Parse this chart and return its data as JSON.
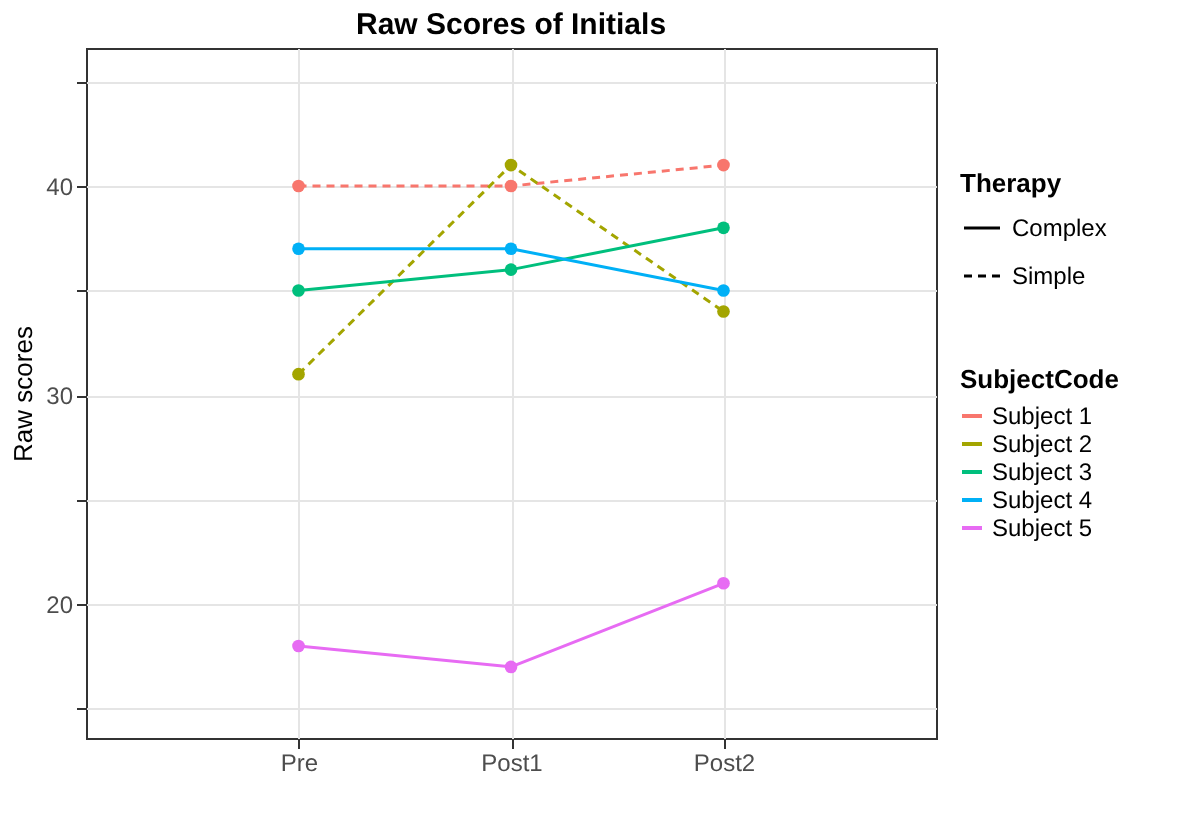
{
  "chart_data": {
    "type": "line",
    "title": "Raw Scores of Initials",
    "ylabel": "Raw scores",
    "categories": [
      "Pre",
      "Post1",
      "Post2"
    ],
    "legend_title": [
      "Therapy",
      "SubjectCode"
    ],
    "annotations": [
      "Complex",
      "Simple"
    ],
    "legend": "right",
    "grid": true,
    "marker": "circle",
    "ylim": [
      13.6,
      46.6
    ],
    "yticks": [
      {
        "value": 15,
        "label": null
      },
      20,
      {
        "value": 25,
        "label": null
      },
      30,
      {
        "value": 35,
        "label": null
      },
      40,
      {
        "value": 45,
        "label": null
      }
    ],
    "series": [
      {
        "name": "Subject 1",
        "color": "#f8766d",
        "line_style": "dashed",
        "values": [
          40,
          40,
          41
        ]
      },
      {
        "name": "Subject 2",
        "color": "#a3a500",
        "line_style": "dashed",
        "values": [
          31,
          41,
          34
        ]
      },
      {
        "name": "Subject 3",
        "color": "#00bf7d",
        "line_style": "solid",
        "values": [
          35,
          36,
          38
        ]
      },
      {
        "name": "Subject 4",
        "color": "#00b0f6",
        "line_style": "solid",
        "values": [
          37,
          37,
          35
        ]
      },
      {
        "name": "Subject 5",
        "color": "#e76bf3",
        "line_style": "solid",
        "values": [
          18,
          17,
          21
        ]
      }
    ]
  }
}
